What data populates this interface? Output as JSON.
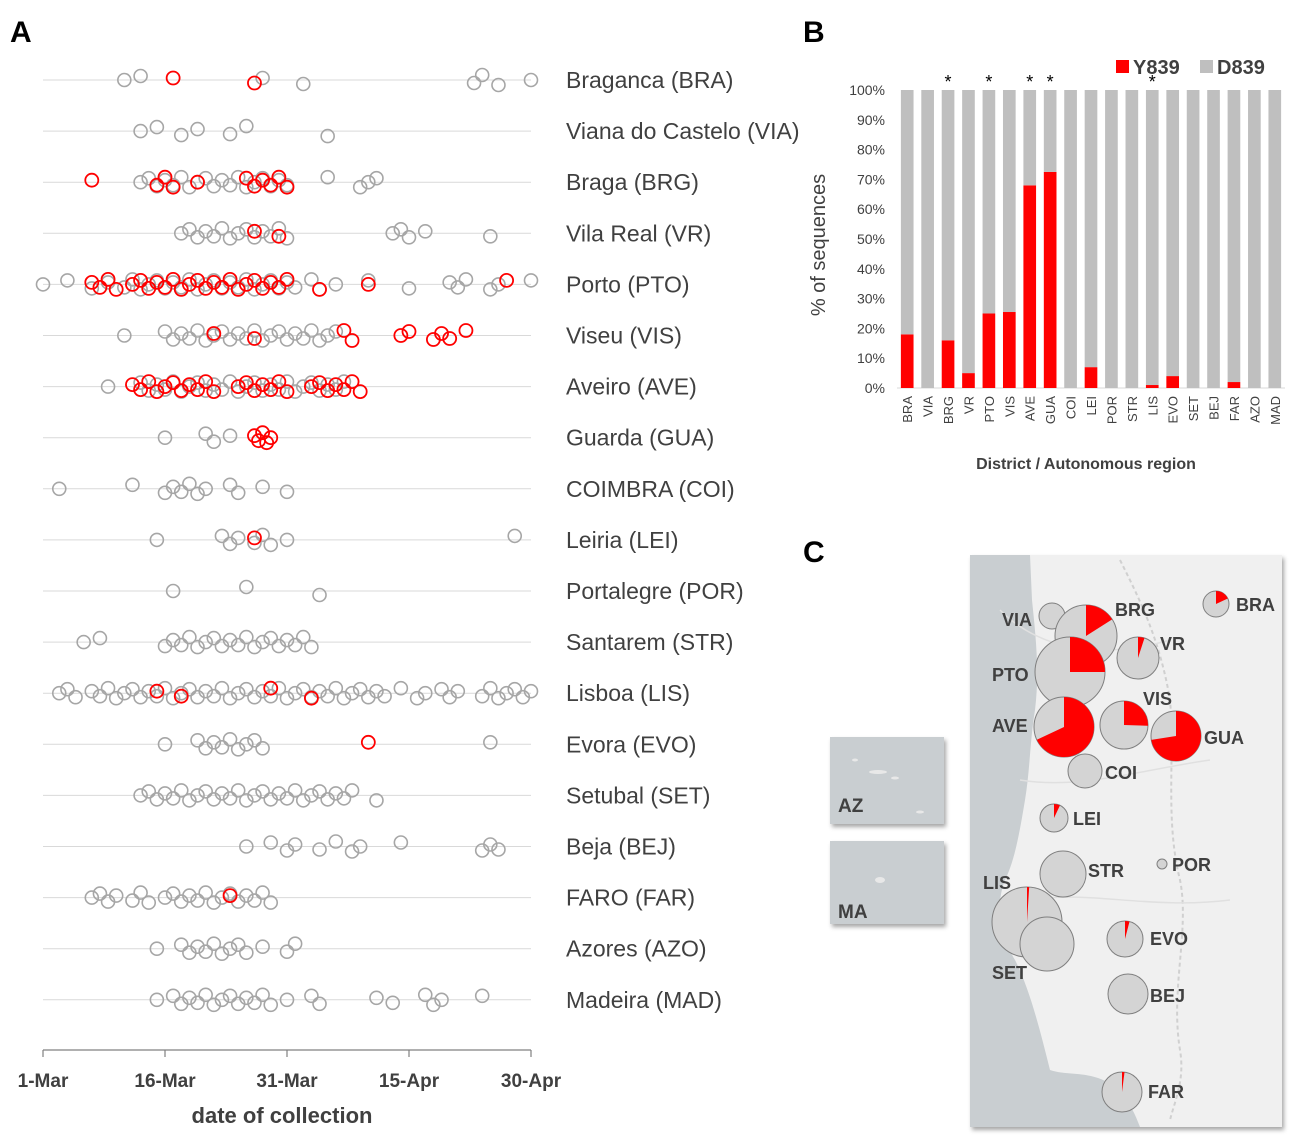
{
  "panels": {
    "a": "A",
    "b": "B",
    "c": "C"
  },
  "colors": {
    "y839": "#ff0000",
    "d839": "#a6a6a6",
    "bar_gray": "#bfbfbf",
    "grid": "#d9d9d9",
    "map_land": "#f0f0f0",
    "map_sea": "#c9ced1"
  },
  "chart_data": [
    {
      "type": "scatter",
      "description_role": "strip plot by district",
      "xlabel": "date of collection",
      "x_ticks": [
        "1-Mar",
        "16-Mar",
        "31-Mar",
        "15-Apr",
        "30-Apr"
      ],
      "x_tick_days": [
        0,
        15,
        30,
        45,
        60
      ],
      "xlim_days": [
        0,
        60
      ],
      "rows": [
        {
          "label": "Braganca (BRA)",
          "gray": [
            10,
            12,
            32,
            27,
            53,
            54,
            56,
            60
          ],
          "red": [
            16,
            26
          ]
        },
        {
          "label": "Viana do Castelo (VIA)",
          "gray": [
            12,
            14,
            17,
            19,
            23,
            25,
            35
          ],
          "red": []
        },
        {
          "label": "Braga (BRG)",
          "gray": [
            12,
            13,
            14,
            15,
            16,
            17,
            18,
            19,
            20,
            21,
            22,
            23,
            24,
            25,
            26,
            27,
            28,
            29,
            30,
            35,
            39,
            40,
            41
          ],
          "red": [
            6,
            14,
            15,
            16,
            19,
            25,
            26,
            27,
            28,
            29,
            30
          ]
        },
        {
          "label": "Vila Real (VR)",
          "gray": [
            17,
            18,
            19,
            20,
            21,
            22,
            23,
            24,
            25,
            26,
            27,
            28,
            29,
            30,
            43,
            44,
            45,
            47,
            55
          ],
          "red": [
            26,
            29
          ]
        },
        {
          "label": "Porto (PTO)",
          "gray": [
            0,
            3,
            6,
            8,
            10,
            11,
            12,
            13,
            14,
            15,
            16,
            17,
            18,
            19,
            20,
            21,
            22,
            23,
            24,
            25,
            26,
            27,
            28,
            29,
            30,
            31,
            33,
            34,
            36,
            40,
            45,
            50,
            51,
            52,
            55,
            56,
            60
          ],
          "red": [
            6,
            7,
            8,
            9,
            11,
            12,
            13,
            14,
            15,
            16,
            17,
            18,
            19,
            20,
            21,
            22,
            23,
            24,
            25,
            26,
            27,
            28,
            29,
            30,
            34,
            40,
            57
          ]
        },
        {
          "label": "Viseu (VIS)",
          "gray": [
            10,
            15,
            16,
            17,
            18,
            19,
            20,
            21,
            22,
            23,
            24,
            25,
            26,
            27,
            28,
            29,
            30,
            31,
            32,
            33,
            34,
            35,
            36
          ],
          "red": [
            21,
            26,
            37,
            38,
            44,
            45,
            48,
            49,
            50,
            52
          ]
        },
        {
          "label": "Aveiro (AVE)",
          "gray": [
            8,
            12,
            13,
            14,
            15,
            16,
            17,
            18,
            19,
            20,
            21,
            22,
            23,
            24,
            25,
            26,
            27,
            28,
            29,
            30,
            31,
            32,
            33,
            34,
            35,
            36,
            37
          ],
          "red": [
            11,
            12,
            13,
            14,
            15,
            16,
            17,
            18,
            19,
            20,
            21,
            24,
            25,
            26,
            27,
            28,
            29,
            30,
            33,
            34,
            35,
            36,
            37,
            38,
            39
          ]
        },
        {
          "label": "Guarda (GUA)",
          "gray": [
            15,
            20,
            21,
            23
          ],
          "red": [
            26,
            26.5,
            27,
            27.5,
            28
          ]
        },
        {
          "label": "COIMBRA (COI)",
          "gray": [
            2,
            11,
            15,
            16,
            17,
            18,
            19,
            20,
            23,
            24,
            27,
            30
          ],
          "red": []
        },
        {
          "label": "Leiria (LEI)",
          "gray": [
            14,
            22,
            23,
            24,
            26,
            27,
            28,
            30,
            58
          ],
          "red": [
            26
          ]
        },
        {
          "label": "Portalegre (POR)",
          "gray": [
            16,
            25,
            34
          ],
          "red": []
        },
        {
          "label": "Santarem (STR)",
          "gray": [
            5,
            7,
            15,
            16,
            17,
            18,
            19,
            20,
            21,
            22,
            23,
            24,
            25,
            26,
            27,
            28,
            29,
            30,
            31,
            32,
            33
          ],
          "red": []
        },
        {
          "label": "Lisboa (LIS)",
          "gray": [
            2,
            3,
            4,
            6,
            7,
            8,
            9,
            10,
            11,
            12,
            13,
            14,
            15,
            16,
            17,
            18,
            19,
            20,
            21,
            22,
            23,
            24,
            25,
            26,
            27,
            28,
            29,
            30,
            31,
            32,
            33,
            34,
            35,
            36,
            37,
            38,
            39,
            40,
            41,
            42,
            44,
            46,
            47,
            49,
            50,
            51,
            54,
            55,
            56,
            57,
            58,
            59,
            60
          ],
          "red": [
            14,
            17,
            28,
            33
          ]
        },
        {
          "label": "Evora (EVO)",
          "gray": [
            15,
            19,
            20,
            21,
            22,
            23,
            24,
            25,
            26,
            27,
            55
          ],
          "red": [
            40
          ]
        },
        {
          "label": "Setubal (SET)",
          "gray": [
            12,
            13,
            14,
            15,
            16,
            17,
            18,
            19,
            20,
            21,
            22,
            23,
            24,
            25,
            26,
            27,
            28,
            29,
            30,
            31,
            32,
            33,
            34,
            35,
            36,
            37,
            38,
            41
          ],
          "red": []
        },
        {
          "label": "Beja (BEJ)",
          "gray": [
            25,
            28,
            30,
            31,
            34,
            36,
            38,
            39,
            44,
            54,
            55,
            56
          ],
          "red": []
        },
        {
          "label": "FARO (FAR)",
          "gray": [
            6,
            7,
            8,
            9,
            11,
            12,
            13,
            15,
            16,
            17,
            18,
            19,
            20,
            21,
            22,
            23,
            24,
            25,
            26,
            27,
            28
          ],
          "red": [
            23
          ]
        },
        {
          "label": "Azores (AZO)",
          "gray": [
            14,
            17,
            18,
            19,
            20,
            21,
            22,
            23,
            24,
            25,
            27,
            30,
            31
          ],
          "red": []
        },
        {
          "label": "Madeira (MAD)",
          "gray": [
            14,
            16,
            17,
            18,
            19,
            20,
            21,
            22,
            23,
            24,
            25,
            26,
            27,
            28,
            30,
            33,
            34,
            41,
            43,
            47,
            48,
            49,
            54
          ],
          "red": []
        }
      ]
    },
    {
      "type": "bar",
      "stacked": true,
      "categories": [
        "BRA",
        "VIA",
        "BRG",
        "VR",
        "PTO",
        "VIS",
        "AVE",
        "GUA",
        "COI",
        "LEI",
        "POR",
        "STR",
        "LIS",
        "EVO",
        "SET",
        "BEJ",
        "FAR",
        "AZO",
        "MAD"
      ],
      "series": [
        {
          "name": "Y839",
          "values": [
            18,
            0,
            16,
            5,
            25,
            25.5,
            68,
            72.5,
            0,
            7,
            0,
            0,
            1,
            4,
            0,
            0,
            2,
            0,
            0
          ]
        },
        {
          "name": "D839",
          "values": [
            82,
            100,
            84,
            95,
            75,
            74.5,
            32,
            27.5,
            100,
            93,
            100,
            100,
            99,
            96,
            100,
            100,
            98,
            100,
            100
          ]
        }
      ],
      "significant": [
        "BRG",
        "PTO",
        "AVE",
        "GUA",
        "LIS"
      ],
      "star_symbol": "*",
      "ylabel": "% of sequences",
      "xlabel": "District / Autonomous region",
      "ylim": [
        0,
        100
      ],
      "y_ticks": [
        "0%",
        "10%",
        "20%",
        "30%",
        "40%",
        "50%",
        "60%",
        "70%",
        "80%",
        "90%",
        "100%"
      ],
      "legend_position": "top-right"
    },
    {
      "type": "pie",
      "role": "map of pie charts (share of Y839 per district)",
      "pies": [
        {
          "label": "BRA",
          "y839_share": 0.18
        },
        {
          "label": "VIA",
          "y839_share": 0
        },
        {
          "label": "BRG",
          "y839_share": 0.16
        },
        {
          "label": "VR",
          "y839_share": 0.05
        },
        {
          "label": "PTO",
          "y839_share": 0.25
        },
        {
          "label": "VIS",
          "y839_share": 0.255
        },
        {
          "label": "AVE",
          "y839_share": 0.68
        },
        {
          "label": "GUA",
          "y839_share": 0.725
        },
        {
          "label": "COI",
          "y839_share": 0
        },
        {
          "label": "LEI",
          "y839_share": 0.07
        },
        {
          "label": "STR",
          "y839_share": 0
        },
        {
          "label": "POR",
          "y839_share": 0
        },
        {
          "label": "LIS",
          "y839_share": 0.01
        },
        {
          "label": "SET",
          "y839_share": 0
        },
        {
          "label": "EVO",
          "y839_share": 0.04
        },
        {
          "label": "BEJ",
          "y839_share": 0
        },
        {
          "label": "FAR",
          "y839_share": 0.02
        }
      ],
      "insets": [
        {
          "label": "AZ",
          "y839_share": 0
        },
        {
          "label": "MA",
          "y839_share": 0
        }
      ]
    }
  ]
}
